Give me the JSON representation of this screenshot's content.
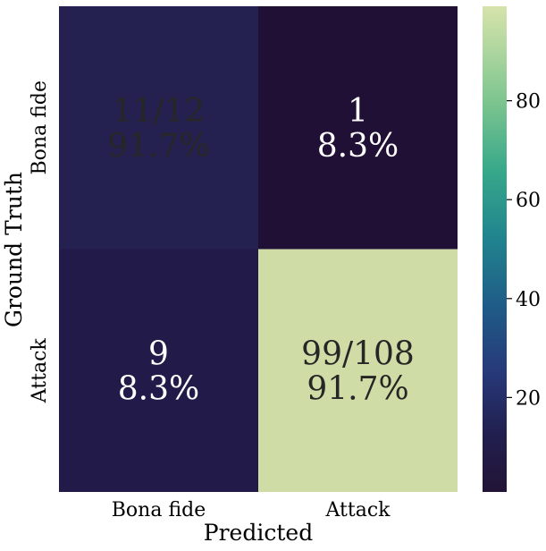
{
  "chart_data": {
    "type": "heatmap",
    "xlabel": "Predicted",
    "ylabel": "Ground Truth",
    "x_categories": [
      "Bona fide",
      "Attack"
    ],
    "y_categories": [
      "Bona fide",
      "Attack"
    ],
    "values_percent": [
      [
        91.7,
        8.3
      ],
      [
        8.3,
        91.7
      ]
    ],
    "cells": [
      [
        {
          "line1": "11/12",
          "line2": "91.7%"
        },
        {
          "line1": "1",
          "line2": "8.3%"
        }
      ],
      [
        {
          "line1": "9",
          "line2": "8.3%"
        },
        {
          "line1": "99/108",
          "line2": "91.7%"
        }
      ]
    ],
    "colorbar": {
      "range": [
        0.9,
        99.1
      ],
      "ticks": [
        20,
        40,
        60,
        80
      ],
      "tick_labels": [
        "20",
        "40",
        "60",
        "80"
      ],
      "colormap": "crest-like (dark navy to pale green)"
    },
    "colors": {
      "cell_00": "#242151",
      "cell_01": "#211035",
      "cell_10": "#221a49",
      "cell_11": "#cfdca6",
      "text_light": "#ffffff",
      "text_dark": "#262626"
    },
    "title": ""
  }
}
